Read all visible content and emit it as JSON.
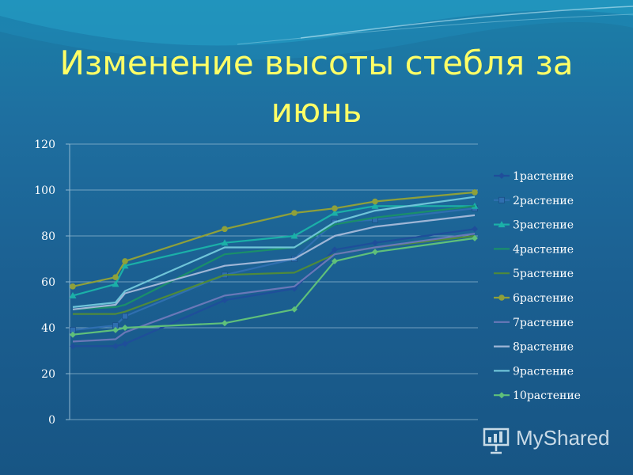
{
  "slide": {
    "title": "Изменение высоты стебля за июнь"
  },
  "watermark": {
    "text": "MyShared",
    "icon": "presentation-icon"
  },
  "chart_data": {
    "type": "line",
    "title": "",
    "xlabel": "",
    "ylabel": "",
    "ylim": [
      0,
      120
    ],
    "yticks": [
      0,
      20,
      40,
      60,
      80,
      100,
      120
    ],
    "grid": true,
    "legend_position": "right",
    "x": [
      1,
      2,
      3,
      4,
      5,
      6,
      7,
      8
    ],
    "series": [
      {
        "name": "1растение",
        "color": "#1f4e9a",
        "marker": "diamond",
        "values": [
          32,
          32,
          33,
          52,
          57,
          74,
          77,
          83
        ]
      },
      {
        "name": "2растение",
        "color": "#2f6fb0",
        "marker": "square",
        "values": [
          39,
          41,
          45,
          63,
          70,
          86,
          87,
          92
        ]
      },
      {
        "name": "3растение",
        "color": "#1bb0a8",
        "marker": "triangle",
        "values": [
          54,
          59,
          67,
          77,
          80,
          90,
          93,
          93
        ]
      },
      {
        "name": "4растение",
        "color": "#1a8f6a",
        "marker": "none",
        "values": [
          48,
          49,
          50,
          72,
          75,
          85,
          88,
          93
        ]
      },
      {
        "name": "5растение",
        "color": "#4f8a3a",
        "marker": "none",
        "values": [
          46,
          46,
          47,
          63,
          64,
          72,
          75,
          80
        ]
      },
      {
        "name": "6растение",
        "color": "#8fa03a",
        "marker": "circle",
        "values": [
          58,
          62,
          69,
          83,
          90,
          92,
          95,
          99
        ]
      },
      {
        "name": "7растение",
        "color": "#6a78b8",
        "marker": "none",
        "values": [
          34,
          35,
          38,
          54,
          58,
          72,
          75,
          81
        ]
      },
      {
        "name": "8растение",
        "color": "#9fb6d6",
        "marker": "none",
        "values": [
          48,
          50,
          55,
          67,
          70,
          80,
          84,
          89
        ]
      },
      {
        "name": "9растение",
        "color": "#6fc4d8",
        "marker": "none",
        "values": [
          49,
          51,
          56,
          75,
          75,
          86,
          91,
          97
        ]
      },
      {
        "name": "10растение",
        "color": "#5fc07a",
        "marker": "diamond",
        "values": [
          37,
          39,
          40,
          42,
          48,
          69,
          73,
          79
        ]
      }
    ]
  }
}
